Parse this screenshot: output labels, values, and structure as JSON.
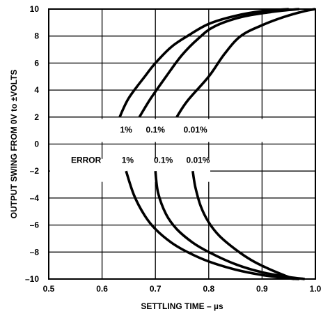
{
  "chart_data": {
    "type": "line",
    "title": "",
    "xlabel": "SETTLING TIME – µs",
    "ylabel": "OUTPUT SWING FROM 0V to ±VOLTS",
    "xlim": [
      0.5,
      1.0
    ],
    "ylim": [
      -10,
      10
    ],
    "x_ticks": [
      "0.5",
      "0.6",
      "0.7",
      "0.8",
      "0.9",
      "1.0"
    ],
    "y_ticks": [
      "10",
      "8",
      "6",
      "4",
      "2",
      "0",
      "–2",
      "–4",
      "–6",
      "–8",
      "–10"
    ],
    "grid": true,
    "annotations": {
      "upper_labels": [
        "1%",
        "0.1%",
        "0.01%"
      ],
      "lower_labels": [
        "ERROR",
        "1%",
        "0.1%",
        "0.01%"
      ]
    },
    "series": [
      {
        "name": "1%",
        "points": [
          [
            0.633,
            2
          ],
          [
            0.65,
            3.4
          ],
          [
            0.68,
            5
          ],
          [
            0.7,
            6
          ],
          [
            0.73,
            7.2
          ],
          [
            0.76,
            8
          ],
          [
            0.8,
            8.9
          ],
          [
            0.85,
            9.5
          ],
          [
            0.9,
            9.85
          ],
          [
            0.95,
            10
          ]
        ]
      },
      {
        "name": "0.1%",
        "points": [
          [
            0.67,
            2
          ],
          [
            0.69,
            3.3
          ],
          [
            0.72,
            5
          ],
          [
            0.75,
            6.6
          ],
          [
            0.78,
            7.8
          ],
          [
            0.81,
            8.7
          ],
          [
            0.86,
            9.4
          ],
          [
            0.92,
            9.8
          ],
          [
            0.97,
            10
          ]
        ]
      },
      {
        "name": "0.01%",
        "points": [
          [
            0.74,
            2
          ],
          [
            0.76,
            3.2
          ],
          [
            0.8,
            5
          ],
          [
            0.83,
            6.7
          ],
          [
            0.86,
            8
          ],
          [
            0.9,
            8.8
          ],
          [
            0.94,
            9.4
          ],
          [
            0.98,
            9.85
          ],
          [
            1.0,
            10
          ]
        ]
      },
      {
        "name": "1%",
        "points": [
          [
            0.645,
            -2
          ],
          [
            0.66,
            -3.8
          ],
          [
            0.68,
            -5.3
          ],
          [
            0.7,
            -6.3
          ],
          [
            0.73,
            -7.3
          ],
          [
            0.76,
            -8
          ],
          [
            0.8,
            -8.7
          ],
          [
            0.85,
            -9.3
          ],
          [
            0.9,
            -9.7
          ],
          [
            0.95,
            -9.95
          ],
          [
            0.97,
            -10
          ]
        ]
      },
      {
        "name": "0.1%",
        "points": [
          [
            0.7,
            -2
          ],
          [
            0.705,
            -3.6
          ],
          [
            0.72,
            -5.2
          ],
          [
            0.74,
            -6.3
          ],
          [
            0.77,
            -7.3
          ],
          [
            0.8,
            -8
          ],
          [
            0.85,
            -8.9
          ],
          [
            0.9,
            -9.5
          ],
          [
            0.95,
            -9.85
          ],
          [
            0.98,
            -10
          ]
        ]
      },
      {
        "name": "0.01%",
        "points": [
          [
            0.77,
            -2
          ],
          [
            0.775,
            -3.2
          ],
          [
            0.785,
            -4.6
          ],
          [
            0.8,
            -5.8
          ],
          [
            0.82,
            -6.8
          ],
          [
            0.85,
            -7.8
          ],
          [
            0.88,
            -8.6
          ],
          [
            0.91,
            -9.2
          ],
          [
            0.94,
            -9.7
          ],
          [
            0.96,
            -10
          ]
        ]
      }
    ]
  }
}
